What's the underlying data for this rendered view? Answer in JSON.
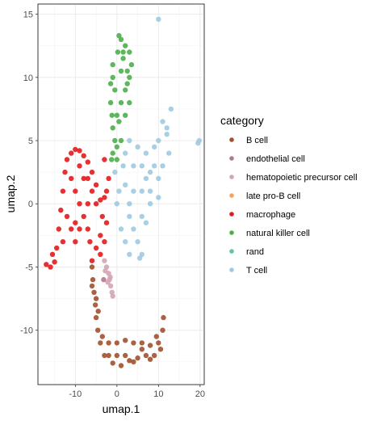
{
  "chart_data": {
    "type": "scatter",
    "title": "",
    "xlabel": "umap.1",
    "ylabel": "umap.2",
    "xlim": [
      -19,
      21
    ],
    "ylim": [
      -14.3,
      15.8
    ],
    "xticks": [
      -10,
      0,
      10,
      20
    ],
    "yticks": [
      15,
      10,
      5,
      0,
      -5,
      -10
    ],
    "xtick_labels": [
      "-10",
      "0",
      "10",
      "20"
    ],
    "ytick_labels": [
      "15",
      "10",
      "5",
      "0",
      "-5",
      "-10"
    ],
    "grid": true,
    "legend": {
      "title": "category",
      "placement": "right"
    },
    "series": [
      {
        "name": "B cell",
        "color": "#A0522D",
        "points": [
          [
            -6,
            -5
          ],
          [
            -5.8,
            -6
          ],
          [
            -5.5,
            -7
          ],
          [
            -5.2,
            -8
          ],
          [
            -5,
            -9
          ],
          [
            -4.6,
            -10
          ],
          [
            -4,
            -11
          ],
          [
            -3,
            -12
          ],
          [
            -1,
            -12.6
          ],
          [
            1,
            -12.8
          ],
          [
            3,
            -12.4
          ],
          [
            5,
            -12.2
          ],
          [
            7,
            -12
          ],
          [
            9,
            -12
          ],
          [
            10.5,
            -11.5
          ],
          [
            11,
            -10
          ],
          [
            11.2,
            -9
          ],
          [
            -4.5,
            -8.5
          ],
          [
            -3.5,
            -10.5
          ],
          [
            -2,
            -11
          ],
          [
            0,
            -11
          ],
          [
            2,
            -10.8
          ],
          [
            4,
            -11
          ],
          [
            6,
            -11
          ],
          [
            8,
            -11.2
          ],
          [
            9.5,
            -10.5
          ],
          [
            -6,
            -6.5
          ],
          [
            -5,
            -7.5
          ],
          [
            -2,
            -12
          ],
          [
            0,
            -12
          ],
          [
            2,
            -12
          ],
          [
            4,
            -12.5
          ],
          [
            6,
            -11.5
          ],
          [
            8,
            -12.3
          ],
          [
            10,
            -11
          ]
        ]
      },
      {
        "name": "endothelial cell",
        "color": "#B07A8E",
        "points": [
          [
            -3.2,
            -6
          ]
        ]
      },
      {
        "name": "hematopoietic precursor cell",
        "color": "#D4A5B5",
        "points": [
          [
            -3,
            -4.5
          ],
          [
            -2.5,
            -5
          ],
          [
            -2,
            -5.5
          ],
          [
            -1.8,
            -6
          ],
          [
            -1.5,
            -6.5
          ],
          [
            -1.2,
            -7
          ],
          [
            -1,
            -7.3
          ],
          [
            -2.8,
            -5.3
          ],
          [
            -2.2,
            -6.2
          ],
          [
            -1.6,
            -5.8
          ]
        ]
      },
      {
        "name": "late pro-B cell",
        "color": "#F4A460",
        "points": []
      },
      {
        "name": "macrophage",
        "color": "#E41A1C",
        "points": [
          [
            -17,
            -4.8
          ],
          [
            -16,
            -5
          ],
          [
            -15,
            -4.6
          ],
          [
            -14.5,
            -3.5
          ],
          [
            -14,
            -2
          ],
          [
            -13.5,
            -0.5
          ],
          [
            -13,
            1
          ],
          [
            -12.5,
            2.5
          ],
          [
            -12,
            3.5
          ],
          [
            -11,
            4
          ],
          [
            -10,
            4.3
          ],
          [
            -9,
            4.2
          ],
          [
            -8,
            3.8
          ],
          [
            -7,
            3.3
          ],
          [
            -6,
            2.5
          ],
          [
            -5,
            1.5
          ],
          [
            -4,
            0.3
          ],
          [
            -3.5,
            -1
          ],
          [
            -4,
            -2.5
          ],
          [
            -5,
            -3.5
          ],
          [
            -6,
            -4.5
          ],
          [
            -4,
            -4
          ],
          [
            -3,
            -3
          ],
          [
            -2.5,
            -1.5
          ],
          [
            -3,
            0.5
          ],
          [
            -2,
            2
          ],
          [
            -3,
            3.5
          ],
          [
            -2.5,
            1
          ],
          [
            -11,
            2
          ],
          [
            -10,
            1
          ],
          [
            -9,
            0
          ],
          [
            -8,
            -1
          ],
          [
            -7,
            -2
          ],
          [
            -6.5,
            -3
          ],
          [
            -12,
            -1
          ],
          [
            -11,
            -2
          ],
          [
            -10,
            -3
          ],
          [
            -9,
            3
          ],
          [
            -7,
            2
          ],
          [
            -6,
            1
          ],
          [
            -5,
            0
          ],
          [
            -10,
            -1.5
          ],
          [
            -8,
            2
          ],
          [
            -13,
            -3
          ],
          [
            -15.5,
            -4
          ],
          [
            -9,
            -2
          ],
          [
            -7,
            0
          ]
        ]
      },
      {
        "name": "natural killer cell",
        "color": "#4DAF4A",
        "points": [
          [
            0.5,
            13.3
          ],
          [
            1,
            13
          ],
          [
            2,
            12.5
          ],
          [
            3,
            12
          ],
          [
            3.5,
            11
          ],
          [
            3,
            10
          ],
          [
            2.5,
            9.5
          ],
          [
            1,
            10.5
          ],
          [
            0.2,
            12
          ],
          [
            -1,
            10
          ],
          [
            -1.5,
            9.5
          ],
          [
            -1.5,
            8
          ],
          [
            -1.2,
            7
          ],
          [
            -1,
            6
          ],
          [
            -0.5,
            5
          ],
          [
            -1,
            4
          ],
          [
            -1.3,
            3.5
          ],
          [
            0,
            4.5
          ],
          [
            1,
            5
          ],
          [
            2,
            7
          ],
          [
            3,
            8
          ],
          [
            2,
            9
          ],
          [
            1,
            8
          ],
          [
            0,
            7
          ],
          [
            -0.5,
            9
          ],
          [
            1.5,
            11.5
          ],
          [
            -1,
            11
          ],
          [
            0.5,
            6.5
          ],
          [
            2.5,
            10.5
          ],
          [
            1.5,
            12
          ],
          [
            0,
            3.5
          ]
        ]
      },
      {
        "name": "rand",
        "color": "#66C2A5",
        "points": []
      },
      {
        "name": "T cell",
        "color": "#9ECAE1",
        "points": [
          [
            10,
            14.6
          ],
          [
            12,
            6
          ],
          [
            13,
            7.5
          ],
          [
            12.5,
            4
          ],
          [
            11,
            3
          ],
          [
            10,
            2
          ],
          [
            8,
            1
          ],
          [
            6,
            -1
          ],
          [
            5,
            -3
          ],
          [
            6,
            -4
          ],
          [
            5.5,
            -4.3
          ],
          [
            4,
            -2
          ],
          [
            3,
            0
          ],
          [
            2,
            1.5
          ],
          [
            1.5,
            3
          ],
          [
            2,
            4
          ],
          [
            3,
            5
          ],
          [
            5,
            4.5
          ],
          [
            7,
            4
          ],
          [
            9,
            4.5
          ],
          [
            10,
            5
          ],
          [
            11,
            6.5
          ],
          [
            12,
            5.5
          ],
          [
            9,
            3
          ],
          [
            8,
            2.5
          ],
          [
            7,
            2
          ],
          [
            6,
            1
          ],
          [
            4,
            1
          ],
          [
            3,
            -1
          ],
          [
            1,
            -2
          ],
          [
            0,
            0
          ],
          [
            0.5,
            1
          ],
          [
            -0.5,
            2.5
          ],
          [
            4,
            3
          ],
          [
            6,
            3
          ],
          [
            8,
            0
          ],
          [
            2,
            -3
          ],
          [
            3,
            -4
          ],
          [
            7,
            -1.5
          ],
          [
            10,
            0.5
          ],
          [
            19.5,
            4.8
          ],
          [
            19.8,
            5
          ]
        ]
      }
    ]
  }
}
